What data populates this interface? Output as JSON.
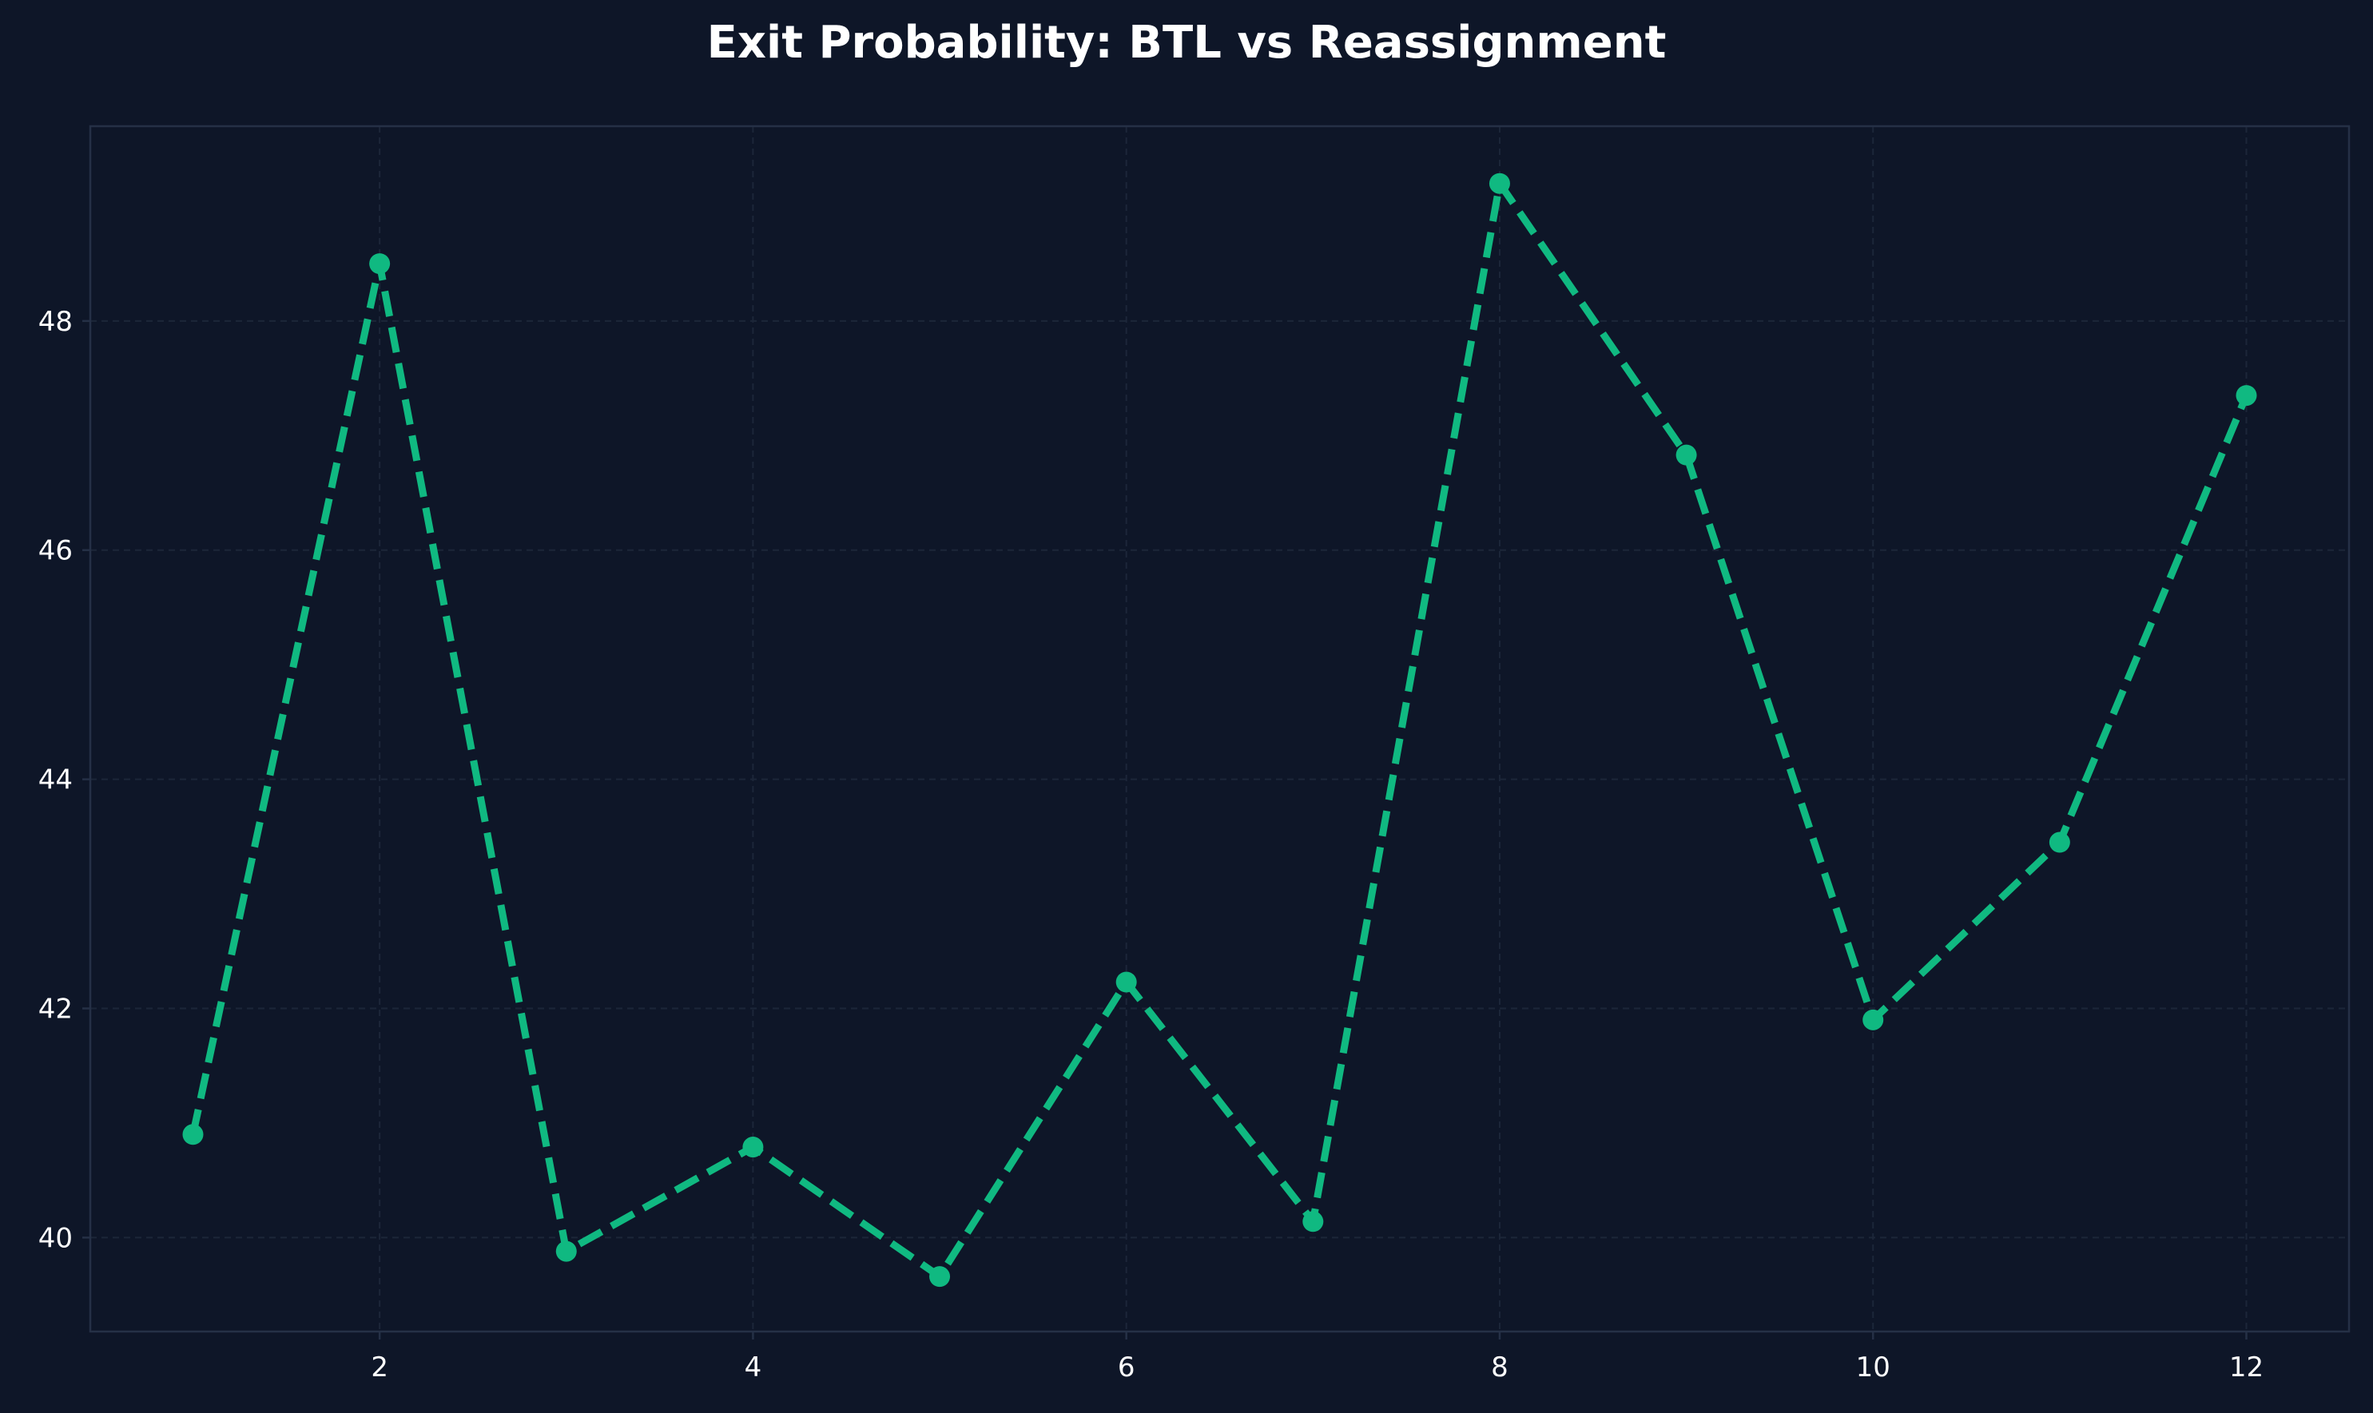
{
  "chart_data": {
    "type": "line",
    "title": "Exit Probability: BTL vs Reassignment",
    "xlabel": "",
    "ylabel": "",
    "x": [
      1,
      2,
      3,
      4,
      5,
      6,
      7,
      8,
      9,
      10,
      11,
      12
    ],
    "series": [
      {
        "values": [
          40.9,
          48.5,
          39.88,
          40.79,
          39.66,
          42.23,
          40.14,
          49.2,
          46.83,
          41.9,
          43.45,
          47.35
        ]
      }
    ],
    "xlim": [
      0.45,
      12.55
    ],
    "ylim": [
      39.18,
      49.7
    ],
    "xticks": [
      2,
      4,
      6,
      8,
      10,
      12
    ],
    "yticks": [
      40,
      42,
      44,
      46,
      48
    ],
    "grid": true,
    "line_style": "dashed",
    "marker": "circle",
    "colors": {
      "background": "#0e1628",
      "line": "#10b981",
      "grid": "#1c2639",
      "spine": "#253046",
      "text": "#ffffff"
    }
  }
}
